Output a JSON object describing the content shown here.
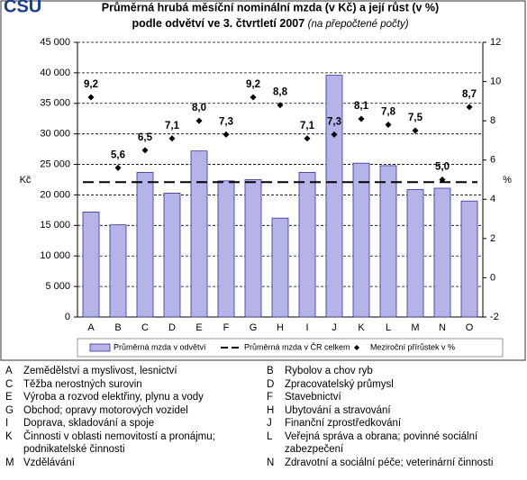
{
  "header": {
    "logo": "CSU"
  },
  "chart_data": {
    "type": "combo",
    "title": "Průměrná hrubá měsíční nominální mzda (v Kč) a její růst (v %)",
    "subtitle": "podle odvětví ve 3. čtvrtletí 2007",
    "subtitle_note": "(na přepočtené počty)",
    "y_label": "Kč",
    "y2_label": "%",
    "categories": [
      "A",
      "B",
      "C",
      "D",
      "E",
      "F",
      "G",
      "H",
      "I",
      "J",
      "K",
      "L",
      "M",
      "N",
      "O"
    ],
    "series": [
      {
        "name": "Průměrná mzda v odvětví",
        "type": "bar",
        "color": "#b4b4e8",
        "values": [
          17200,
          15100,
          23700,
          20300,
          27200,
          22300,
          22500,
          16200,
          23700,
          39600,
          25200,
          24800,
          20900,
          21100,
          19000
        ]
      },
      {
        "name": "Průměrná mzda v ČR celkem",
        "type": "hline",
        "color": "#000000",
        "value": 22100
      },
      {
        "name": "Meziroční přírůstek v %",
        "type": "scatter",
        "axis": "y2",
        "color": "#000000",
        "values": [
          9.2,
          5.6,
          6.5,
          7.1,
          8.0,
          7.3,
          9.2,
          8.8,
          7.1,
          7.3,
          8.1,
          7.8,
          7.5,
          5.0,
          8.7
        ],
        "value_labels": [
          "9,2",
          "5,6",
          "6,5",
          "7,1",
          "8,0",
          "7,3",
          "9,2",
          "8,8",
          "7,1",
          "7,3",
          "8,1",
          "7,8",
          "7,5",
          "5,0",
          "8,7"
        ]
      }
    ],
    "ylim": [
      0,
      45000
    ],
    "yticks": [
      0,
      {
        "value": 5000,
        "label": "5 000"
      },
      {
        "value": 10000,
        "label": "10 000"
      },
      {
        "value": 15000,
        "label": "15 000"
      },
      {
        "value": 20000,
        "label": "20 000"
      },
      {
        "value": 25000,
        "label": "25 000"
      },
      {
        "value": 30000,
        "label": "30 000"
      },
      {
        "value": 35000,
        "label": "35 000"
      },
      {
        "value": 40000,
        "label": "40 000"
      },
      {
        "value": 45000,
        "label": "45 000"
      }
    ],
    "y2lim": [
      -2,
      12
    ],
    "y2ticks": [
      -2,
      0,
      2,
      4,
      6,
      8,
      10,
      12
    ],
    "grid": true
  },
  "key": [
    {
      "code": "A",
      "label": "Zemědělství a myslivost, lesnictví"
    },
    {
      "code": "B",
      "label": "Rybolov a chov ryb"
    },
    {
      "code": "C",
      "label": "Těžba nerostných surovin"
    },
    {
      "code": "D",
      "label": "Zpracovatelský průmysl"
    },
    {
      "code": "E",
      "label": "Výroba a rozvod elektřiny, plynu a vody"
    },
    {
      "code": "F",
      "label": "Stavebnictví"
    },
    {
      "code": "G",
      "label": "Obchod; opravy motorových vozidel"
    },
    {
      "code": "H",
      "label": "Ubytování a stravování"
    },
    {
      "code": "I",
      "label": "Doprava, skladování a spoje"
    },
    {
      "code": "J",
      "label": "Finanční zprostředkování"
    },
    {
      "code": "K",
      "label": "Činnosti v oblasti nemovitostí a pronájmu; podnikatelské činnosti"
    },
    {
      "code": "L",
      "label": "Veřejná správa a obrana; povinné sociální zabezpečení"
    },
    {
      "code": "M",
      "label": "Vzdělávání"
    },
    {
      "code": "N",
      "label": "Zdravotní a sociální péče; veterinární činnosti"
    }
  ]
}
